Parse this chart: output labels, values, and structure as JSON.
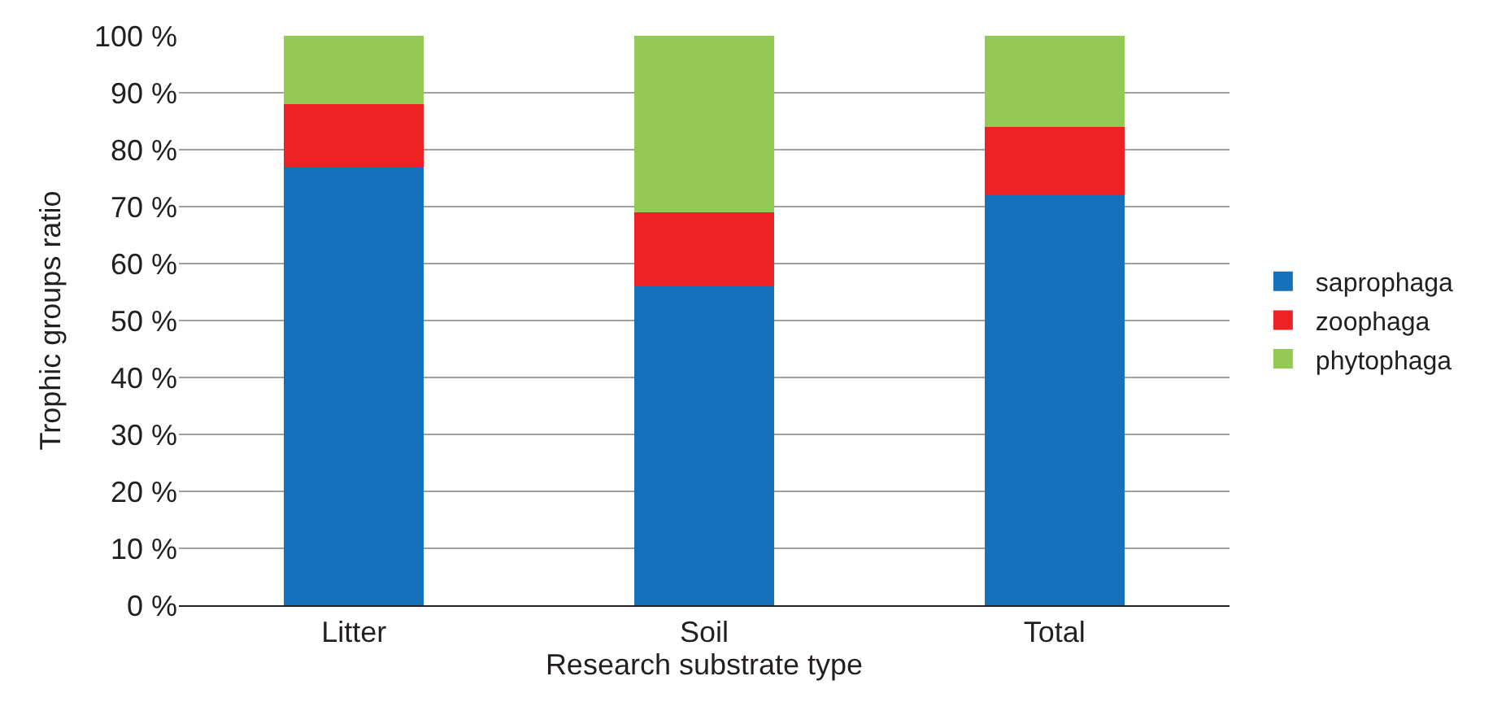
{
  "chart_data": {
    "type": "bar",
    "stacked": true,
    "xlabel": "Research substrate type",
    "ylabel": "Trophic groups ratio",
    "categories": [
      "Litter",
      "Soil",
      "Total"
    ],
    "series": [
      {
        "name": "saprophaga",
        "color": "#1571b9",
        "values": [
          77,
          56,
          72
        ]
      },
      {
        "name": "zoophaga",
        "color": "#ed2224",
        "values": [
          11,
          13,
          12
        ]
      },
      {
        "name": "phytophaga",
        "color": "#93c955",
        "values": [
          12,
          31,
          16
        ]
      }
    ],
    "ylim": [
      0,
      100
    ],
    "yticks": [
      {
        "value": 0,
        "label": "0 %"
      },
      {
        "value": 10,
        "label": "10 %"
      },
      {
        "value": 20,
        "label": "20 %"
      },
      {
        "value": 30,
        "label": "30 %"
      },
      {
        "value": 40,
        "label": "40 %"
      },
      {
        "value": 50,
        "label": "50 %"
      },
      {
        "value": 60,
        "label": "60 %"
      },
      {
        "value": 70,
        "label": "70 %"
      },
      {
        "value": 80,
        "label": "80 %"
      },
      {
        "value": 90,
        "label": "90 %"
      },
      {
        "value": 100,
        "label": "100 %"
      }
    ],
    "grid": "y",
    "legend": "right"
  }
}
